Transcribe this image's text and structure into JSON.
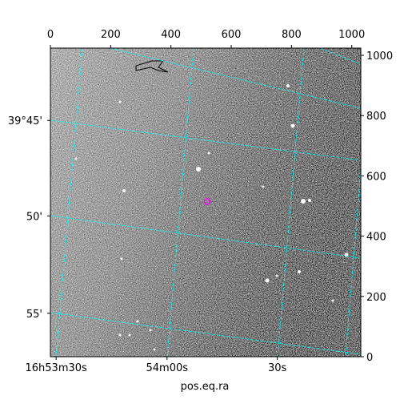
{
  "chart_data": {
    "type": "image",
    "xlabel": "pos.eq.ra",
    "xlim": [
      0,
      1030
    ],
    "ylim": [
      0,
      1024
    ],
    "xticks": [
      0,
      200,
      400,
      600,
      800,
      1000
    ],
    "yticks": [
      0,
      200,
      400,
      600,
      800,
      1000
    ],
    "ra_ticks": [
      {
        "value": 19,
        "label": "16h53m30s"
      },
      {
        "value": 387,
        "label": "54m00s"
      },
      {
        "value": 753,
        "label": "30s"
      }
    ],
    "dec_ticks": [
      {
        "value": 784,
        "label": "39°45'"
      },
      {
        "value": 467,
        "label": "50'"
      },
      {
        "value": 144,
        "label": "55'"
      }
    ],
    "markers": [
      {
        "x": 520,
        "y": 515,
        "color": "#ff00ff"
      }
    ],
    "grid_color": "#00ffff"
  }
}
